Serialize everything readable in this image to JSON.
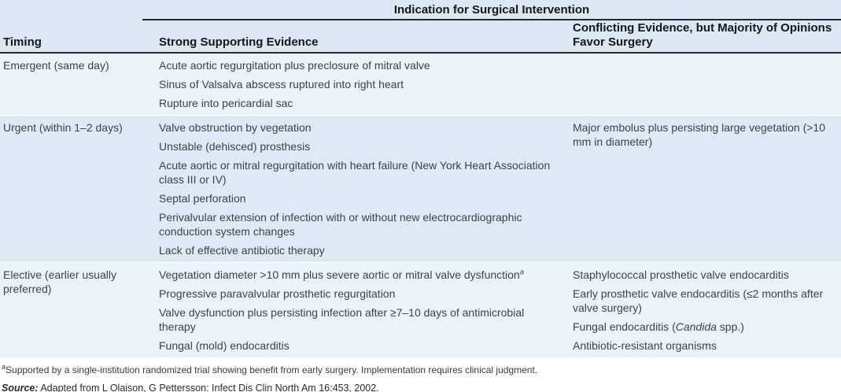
{
  "accent_colors": {
    "header_band": "#dbe7f3",
    "row_light": "#edf3fa",
    "row_medium": "#dde9f4",
    "rule": "#29292b",
    "text": "#3d4247"
  },
  "table": {
    "spanner_title": "Indication for Surgical Intervention",
    "columns": [
      "Timing",
      "Strong Supporting Evidence",
      "Conflicting Evidence, but Majority of Opinions Favor Surgery"
    ],
    "rows": [
      {
        "timing": "Emergent (same day)",
        "strong": [
          "Acute aortic regurgitation plus preclosure of mitral valve",
          "Sinus of Valsalva abscess ruptured into right heart",
          "Rupture into pericardial sac"
        ],
        "conflicting": []
      },
      {
        "timing": "Urgent (within 1–2 days)",
        "strong": [
          "Valve obstruction by vegetation",
          "Unstable (dehisced) prosthesis",
          "Acute aortic or mitral regurgitation with heart failure (New York Heart Association class III or IV)",
          "Septal perforation",
          "Perivalvular extension of infection with or without new electrocardiographic conduction system changes",
          "Lack of effective antibiotic therapy"
        ],
        "conflicting": [
          "Major embolus plus persisting large vegetation (>10 mm in diameter)"
        ]
      },
      {
        "timing": "Elective (earlier usually preferred)",
        "strong": [
          "Vegetation diameter >10 mm plus severe aortic or mitral valve dysfunction^a",
          "Progressive paravalvular prosthetic regurgitation",
          "Valve dysfunction plus persisting infection after ≥7–10 days of antimicrobial therapy",
          "Fungal (mold) endocarditis"
        ],
        "conflicting": [
          "Staphylococcal prosthetic valve endocarditis",
          "Early prosthetic valve endocarditis (≤2 months after valve surgery)",
          "Fungal endocarditis (*Candida* spp.)",
          "Antibiotic-resistant organisms"
        ]
      }
    ]
  },
  "footnotes": {
    "note": "^aSupported by a single-institution randomized trial showing benefit from early surgery. Implementation requires clinical judgment.",
    "source_label": "Source:",
    "source_text": "Adapted from L Olaison, G Pettersson: Infect Dis Clin North Am 16:453, 2002."
  }
}
